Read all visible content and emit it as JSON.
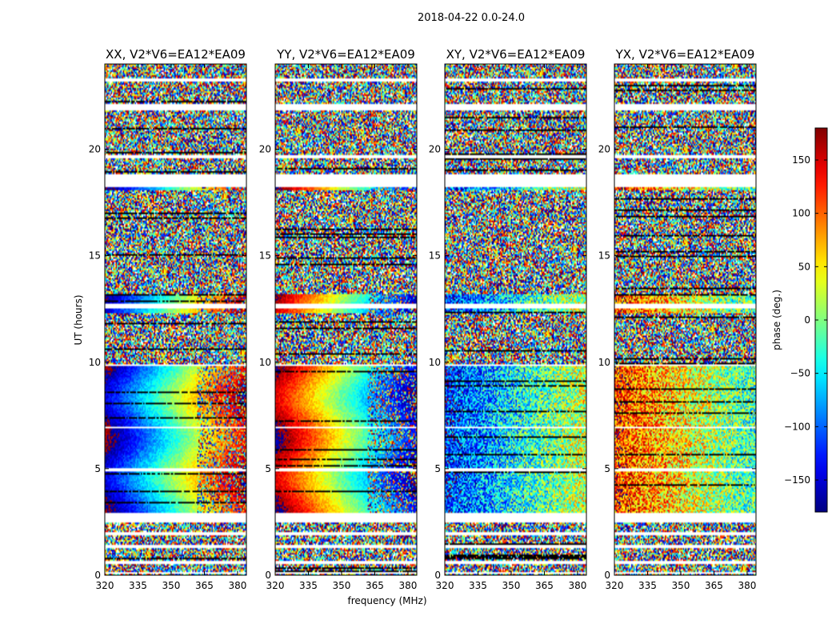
{
  "chart_data": {
    "type": "heatmap",
    "title": "2018-04-22 0.0-24.0",
    "xlabel": "frequency (MHz)",
    "ylabel": "UT (hours)",
    "xlim": [
      320,
      384
    ],
    "ylim": [
      0,
      24
    ],
    "xticks": [
      "320",
      "335",
      "350",
      "365",
      "380"
    ],
    "xtick_values": [
      320,
      335,
      350,
      365,
      380
    ],
    "yticks": [
      "0",
      "5",
      "10",
      "15",
      "20"
    ],
    "ytick_values": [
      0,
      5,
      10,
      15,
      20
    ],
    "panels": [
      {
        "title": "XX, V2*V6=EA12*EA09",
        "mode": "parallel",
        "direction": 1
      },
      {
        "title": "YY, V2*V6=EA12*EA09",
        "mode": "parallel",
        "direction": -1
      },
      {
        "title": "XY, V2*V6=EA12*EA09",
        "mode": "cross",
        "direction": 1
      },
      {
        "title": "YX, V2*V6=EA12*EA09",
        "mode": "cross",
        "direction": -1
      }
    ],
    "colorbar": {
      "label": "phase (deg.)",
      "range": [
        -180,
        180
      ],
      "ticks": [
        "150",
        "100",
        "50",
        "0",
        "−50",
        "−100",
        "−150"
      ],
      "tick_values": [
        150,
        100,
        50,
        0,
        -50,
        -100,
        -150
      ],
      "colormap": "jet"
    },
    "flagged_hours": [
      [
        0.05,
        0.15
      ],
      [
        0.5,
        0.7
      ],
      [
        1.3,
        1.4
      ],
      [
        1.9,
        2.0
      ],
      [
        2.5,
        2.9
      ],
      [
        3.5,
        3.55
      ],
      [
        4.9,
        5.0
      ],
      [
        6.9,
        6.95
      ],
      [
        8.45,
        8.5
      ],
      [
        9.8,
        9.9
      ],
      [
        12.55,
        12.75
      ],
      [
        18.2,
        18.8
      ],
      [
        19.6,
        19.7
      ],
      [
        21.8,
        22.1
      ],
      [
        23.2,
        23.3
      ]
    ],
    "coherent_hours": [
      [
        2.9,
        9.8
      ],
      [
        12.3,
        13.2
      ],
      [
        18.1,
        18.3
      ]
    ]
  }
}
